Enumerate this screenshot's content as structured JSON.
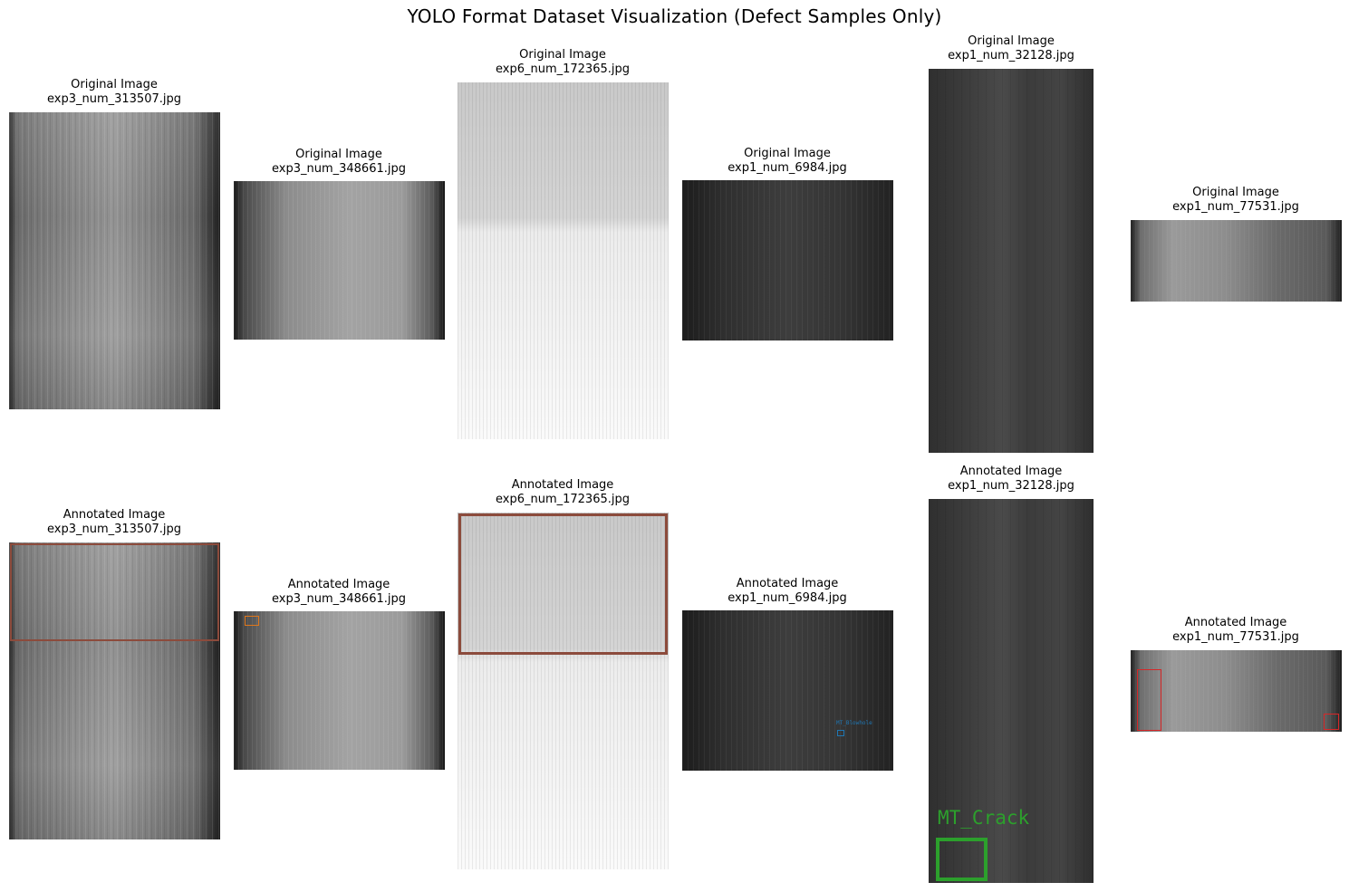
{
  "title": "YOLO Format Dataset Visualization (Defect Samples Only)",
  "panels": [
    {
      "caption": "Original Image",
      "file": "exp3_num_313507.jpg",
      "texture": "t-dark"
    },
    {
      "caption": "Original Image",
      "file": "exp3_num_348661.jpg",
      "texture": "t-mid"
    },
    {
      "caption": "Original Image",
      "file": "exp6_num_172365.jpg",
      "texture": "t-light"
    },
    {
      "caption": "Original Image",
      "file": "exp1_num_6984.jpg",
      "texture": "t-darkgrey"
    },
    {
      "caption": "Original Image",
      "file": "exp1_num_32128.jpg",
      "texture": "t-strip"
    },
    {
      "caption": "Original Image",
      "file": "exp1_num_77531.jpg",
      "texture": "t-wide"
    },
    {
      "caption": "Annotated Image",
      "file": "exp3_num_313507.jpg",
      "texture": "t-dark"
    },
    {
      "caption": "Annotated Image",
      "file": "exp3_num_348661.jpg",
      "texture": "t-mid"
    },
    {
      "caption": "Annotated Image",
      "file": "exp6_num_172365.jpg",
      "texture": "t-light"
    },
    {
      "caption": "Annotated Image",
      "file": "exp1_num_6984.jpg",
      "texture": "t-darkgrey"
    },
    {
      "caption": "Annotated Image",
      "file": "exp1_num_32128.jpg",
      "texture": "t-strip"
    },
    {
      "caption": "Annotated Image",
      "file": "exp1_num_77531.jpg",
      "texture": "t-wide"
    }
  ],
  "annotations": {
    "blowhole_label": "MT_Blowhole",
    "crack_label": "MT_Crack"
  },
  "colors": {
    "brown_box": "#8c4b3c",
    "orange_box": "#e0771b",
    "blue_box": "#1f77b4",
    "green_box": "#2ca02c",
    "red_box": "#d62728"
  }
}
